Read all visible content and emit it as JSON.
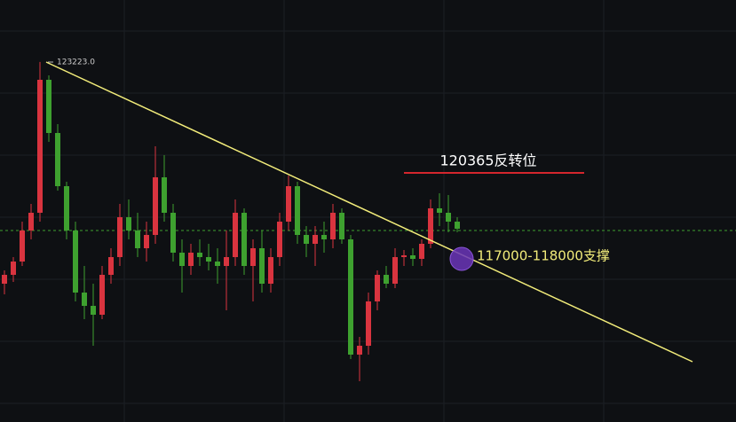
{
  "chart_data": {
    "type": "candlestick",
    "ylim": [
      113882,
      124830
    ],
    "up_color": "#d9343f",
    "down_color": "#3ea12f",
    "open": [
      117470,
      117700,
      118045,
      118850,
      119310,
      122760,
      121380,
      120000,
      118850,
      117240,
      116895,
      116665,
      117700,
      118160,
      119195,
      118850,
      118390,
      118735,
      120230,
      119310,
      118275,
      117930,
      118275,
      118160,
      118045,
      117930,
      118160,
      119310,
      117930,
      118390,
      117470,
      118160,
      119080,
      120000,
      118735,
      118505,
      118735,
      118620,
      119310,
      118620,
      115630,
      115860,
      117010,
      117700,
      117470,
      118160,
      118206,
      118114,
      118505,
      119425,
      119310,
      119080
    ],
    "high": [
      117815,
      118160,
      119080,
      119540,
      123223,
      122875,
      121610,
      120115,
      119080,
      117930,
      117470,
      117930,
      118390,
      119540,
      119655,
      119310,
      119080,
      121035,
      120805,
      119540,
      118620,
      118505,
      118620,
      118505,
      118390,
      118850,
      119655,
      119425,
      118620,
      118850,
      118390,
      119310,
      120276,
      120115,
      118965,
      118965,
      119080,
      119540,
      119425,
      118735,
      116090,
      117240,
      117815,
      117930,
      118390,
      118344,
      118390,
      118620,
      119655,
      119816,
      119770,
      119195
    ],
    "low": [
      117194,
      117516,
      117930,
      118620,
      119080,
      121150,
      119885,
      118620,
      117010,
      116550,
      115860,
      116550,
      117470,
      117930,
      118620,
      118160,
      118045,
      118505,
      119080,
      118045,
      117240,
      117700,
      117930,
      117815,
      117470,
      116780,
      117930,
      117700,
      117010,
      117240,
      117240,
      117930,
      118850,
      118505,
      118160,
      117930,
      118275,
      118390,
      118505,
      115515,
      114940,
      115630,
      116780,
      117355,
      117355,
      117930,
      117930,
      117930,
      118390,
      118965,
      118804,
      118804
    ],
    "close": [
      117700,
      118045,
      118850,
      119310,
      122760,
      121380,
      120000,
      118850,
      117240,
      116895,
      116665,
      117700,
      118160,
      119195,
      118850,
      118390,
      118735,
      120230,
      119310,
      118275,
      117930,
      118275,
      118160,
      118045,
      117930,
      118160,
      119310,
      117930,
      118390,
      117470,
      118160,
      119080,
      120000,
      118735,
      118505,
      118735,
      118620,
      119310,
      118620,
      115630,
      115860,
      117010,
      117700,
      117470,
      118160,
      118206,
      118114,
      118505,
      119425,
      119310,
      119080,
      118896
    ],
    "peak": {
      "value": 123223,
      "label": "123223.0"
    },
    "annotations": [
      "120365反转位",
      "117000-118000支撑"
    ]
  }
}
